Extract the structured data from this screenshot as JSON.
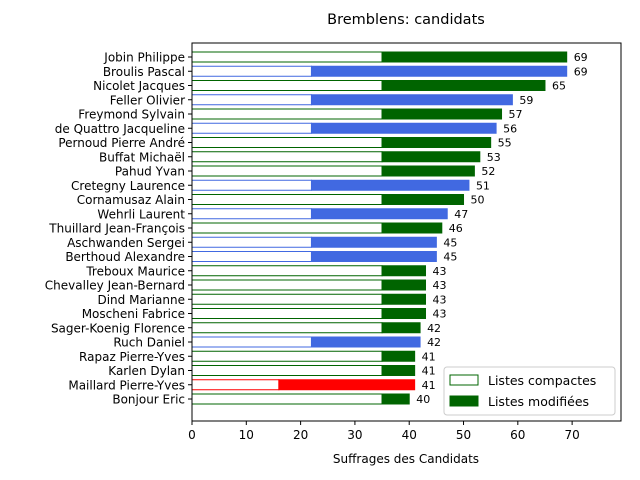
{
  "chart_data": {
    "type": "bar",
    "orientation": "horizontal",
    "stacked": true,
    "title": "Bremblens: candidats",
    "xlabel": "Suffrages des Candidats",
    "ylabel": "",
    "xlim": [
      0,
      79
    ],
    "xticks": [
      0,
      10,
      20,
      30,
      40,
      50,
      60,
      70
    ],
    "grid": false,
    "legend_position": "lower-right",
    "legend": [
      {
        "label": "Listes compactes",
        "style": "outline",
        "color": "#006400"
      },
      {
        "label": "Listes modifiées",
        "style": "filled",
        "color": "#006400"
      }
    ],
    "list_colors": {
      "green": "#006400",
      "blue": "#4169e1",
      "red": "#ff0000"
    },
    "candidates": [
      {
        "name": "Jobin Philippe",
        "list": "green",
        "compact": 35,
        "total": 69
      },
      {
        "name": "Broulis Pascal",
        "list": "blue",
        "compact": 22,
        "total": 69
      },
      {
        "name": "Nicolet Jacques",
        "list": "green",
        "compact": 35,
        "total": 65
      },
      {
        "name": "Feller Olivier",
        "list": "blue",
        "compact": 22,
        "total": 59
      },
      {
        "name": "Freymond Sylvain",
        "list": "green",
        "compact": 35,
        "total": 57
      },
      {
        "name": "de Quattro Jacqueline",
        "list": "blue",
        "compact": 22,
        "total": 56
      },
      {
        "name": "Pernoud Pierre André",
        "list": "green",
        "compact": 35,
        "total": 55
      },
      {
        "name": "Buffat Michaël",
        "list": "green",
        "compact": 35,
        "total": 53
      },
      {
        "name": "Pahud Yvan",
        "list": "green",
        "compact": 35,
        "total": 52
      },
      {
        "name": "Cretegny Laurence",
        "list": "blue",
        "compact": 22,
        "total": 51
      },
      {
        "name": "Cornamusaz Alain",
        "list": "green",
        "compact": 35,
        "total": 50
      },
      {
        "name": "Wehrli Laurent",
        "list": "blue",
        "compact": 22,
        "total": 47
      },
      {
        "name": "Thuillard Jean-François",
        "list": "green",
        "compact": 35,
        "total": 46
      },
      {
        "name": "Aschwanden Sergei",
        "list": "blue",
        "compact": 22,
        "total": 45
      },
      {
        "name": "Berthoud Alexandre",
        "list": "blue",
        "compact": 22,
        "total": 45
      },
      {
        "name": "Treboux Maurice",
        "list": "green",
        "compact": 35,
        "total": 43
      },
      {
        "name": "Chevalley Jean-Bernard",
        "list": "green",
        "compact": 35,
        "total": 43
      },
      {
        "name": "Dind Marianne",
        "list": "green",
        "compact": 35,
        "total": 43
      },
      {
        "name": "Moscheni Fabrice",
        "list": "green",
        "compact": 35,
        "total": 43
      },
      {
        "name": "Sager-Koenig Florence",
        "list": "green",
        "compact": 35,
        "total": 42
      },
      {
        "name": "Ruch Daniel",
        "list": "blue",
        "compact": 22,
        "total": 42
      },
      {
        "name": "Rapaz Pierre-Yves",
        "list": "green",
        "compact": 35,
        "total": 41
      },
      {
        "name": "Karlen Dylan",
        "list": "green",
        "compact": 35,
        "total": 41
      },
      {
        "name": "Maillard Pierre-Yves",
        "list": "red",
        "compact": 16,
        "total": 41
      },
      {
        "name": "Bonjour Eric",
        "list": "green",
        "compact": 35,
        "total": 40
      }
    ]
  }
}
